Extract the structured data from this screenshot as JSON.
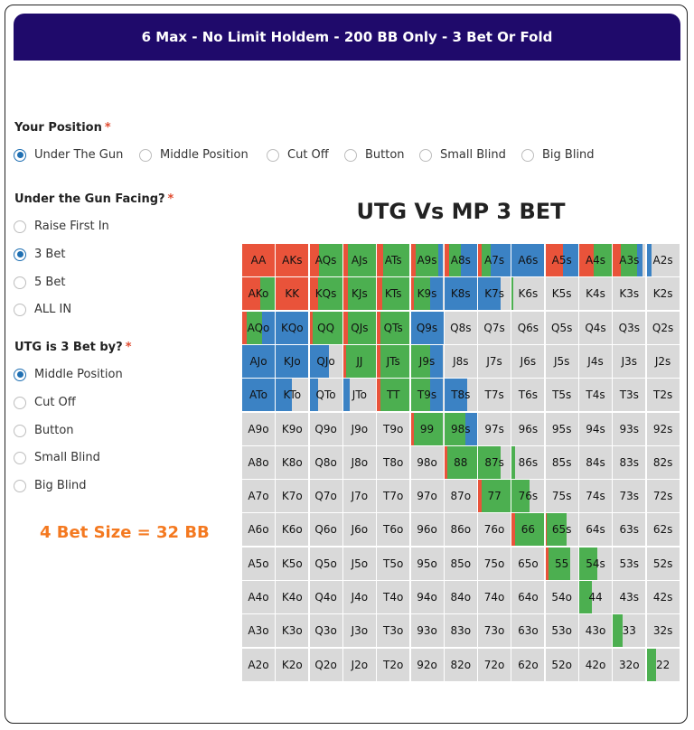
{
  "header": {
    "title": "6 Max - No Limit Holdem - 200 BB Only - 3 Bet Or Fold"
  },
  "colors": {
    "banner": "#1f0a6b",
    "raise": "#e9533a",
    "call": "#4caf50",
    "fold": "#3b82c4",
    "none": "#d9d9d9",
    "accent": "#f47920"
  },
  "position": {
    "label": "Your Position",
    "required": "*",
    "options": [
      "Under The Gun",
      "Middle Position",
      "Cut Off",
      "Button",
      "Small Blind",
      "Big Blind"
    ],
    "selected": "Under The Gun"
  },
  "facing": {
    "label": "Under the Gun Facing?",
    "required": "*",
    "options": [
      "Raise First In",
      "3 Bet",
      "5 Bet",
      "ALL IN"
    ],
    "selected": "3 Bet"
  },
  "three_bettor": {
    "label": "UTG is 3 Bet by?",
    "required": "*",
    "options": [
      "Middle Position",
      "Cut Off",
      "Button",
      "Small Blind",
      "Big Blind"
    ],
    "selected": "Middle Position"
  },
  "bet_size": "4 Bet Size = 32 BB",
  "chart_title": "UTG Vs MP 3 BET",
  "grid": {
    "rows": [
      [
        "AA",
        "AKs",
        "AQs",
        "AJs",
        "ATs",
        "A9s",
        "A8s",
        "A7s",
        "A6s",
        "A5s",
        "A4s",
        "A3s",
        "A2s"
      ],
      [
        "AKo",
        "KK",
        "KQs",
        "KJs",
        "KTs",
        "K9s",
        "K8s",
        "K7s",
        "K6s",
        "K5s",
        "K4s",
        "K3s",
        "K2s"
      ],
      [
        "AQo",
        "KQo",
        "QQ",
        "QJs",
        "QTs",
        "Q9s",
        "Q8s",
        "Q7s",
        "Q6s",
        "Q5s",
        "Q4s",
        "Q3s",
        "Q2s"
      ],
      [
        "AJo",
        "KJo",
        "QJo",
        "JJ",
        "JTs",
        "J9s",
        "J8s",
        "J7s",
        "J6s",
        "J5s",
        "J4s",
        "J3s",
        "J2s"
      ],
      [
        "ATo",
        "KTo",
        "QTo",
        "JTo",
        "TT",
        "T9s",
        "T8s",
        "T7s",
        "T6s",
        "T5s",
        "T4s",
        "T3s",
        "T2s"
      ],
      [
        "A9o",
        "K9o",
        "Q9o",
        "J9o",
        "T9o",
        "99",
        "98s",
        "97s",
        "96s",
        "95s",
        "94s",
        "93s",
        "92s"
      ],
      [
        "A8o",
        "K8o",
        "Q8o",
        "J8o",
        "T8o",
        "98o",
        "88",
        "87s",
        "86s",
        "85s",
        "84s",
        "83s",
        "82s"
      ],
      [
        "A7o",
        "K7o",
        "Q7o",
        "J7o",
        "T7o",
        "97o",
        "87o",
        "77",
        "76s",
        "75s",
        "74s",
        "73s",
        "72s"
      ],
      [
        "A6o",
        "K6o",
        "Q6o",
        "J6o",
        "T6o",
        "96o",
        "86o",
        "76o",
        "66",
        "65s",
        "64s",
        "63s",
        "62s"
      ],
      [
        "A5o",
        "K5o",
        "Q5o",
        "J5o",
        "T5o",
        "95o",
        "85o",
        "75o",
        "65o",
        "55",
        "54s",
        "53s",
        "52s"
      ],
      [
        "A4o",
        "K4o",
        "Q4o",
        "J4o",
        "T4o",
        "94o",
        "84o",
        "74o",
        "64o",
        "54o",
        "44",
        "43s",
        "42s"
      ],
      [
        "A3o",
        "K3o",
        "Q3o",
        "J3o",
        "T3o",
        "93o",
        "83o",
        "73o",
        "63o",
        "53o",
        "43o",
        "33",
        "32s"
      ],
      [
        "A2o",
        "K2o",
        "Q2o",
        "J2o",
        "T2o",
        "92o",
        "82o",
        "72o",
        "62o",
        "52o",
        "42o",
        "32o",
        "22"
      ]
    ],
    "frequencies": {
      "AA": {
        "raise": 1.0
      },
      "AKs": {
        "raise": 1.0
      },
      "AQs": {
        "raise": 0.3,
        "call": 0.7
      },
      "AJs": {
        "raise": 0.15,
        "call": 0.85
      },
      "ATs": {
        "raise": 0.2,
        "call": 0.8
      },
      "A9s": {
        "raise": 0.15,
        "call": 0.7,
        "fold": 0.15
      },
      "A8s": {
        "raise": 0.15,
        "call": 0.35,
        "fold": 0.5
      },
      "A7s": {
        "raise": 0.1,
        "call": 0.3,
        "fold": 0.6
      },
      "A6s": {
        "fold": 1.0
      },
      "A5s": {
        "raise": 0.55,
        "fold": 0.45
      },
      "A4s": {
        "raise": 0.45,
        "call": 0.55
      },
      "A3s": {
        "raise": 0.25,
        "call": 0.5,
        "fold": 0.15
      },
      "A2s": {
        "fold": 0.15
      },
      "AKo": {
        "raise": 0.55,
        "call": 0.45
      },
      "KK": {
        "raise": 1.0
      },
      "KQs": {
        "raise": 0.25,
        "call": 0.75
      },
      "KJs": {
        "raise": 0.15,
        "call": 0.85
      },
      "KTs": {
        "raise": 0.15,
        "call": 0.85
      },
      "K9s": {
        "raise": 0.1,
        "call": 0.5,
        "fold": 0.4
      },
      "K8s": {
        "fold": 1.0
      },
      "K7s": {
        "fold": 0.7
      },
      "K6s": {
        "call": 0.05
      },
      "AQo": {
        "raise": 0.15,
        "call": 0.45,
        "fold": 0.4
      },
      "KQo": {
        "fold": 1.0
      },
      "QQ": {
        "raise": 0.1,
        "call": 0.9
      },
      "QJs": {
        "raise": 0.15,
        "call": 0.85
      },
      "QTs": {
        "raise": 0.1,
        "call": 0.9
      },
      "Q9s": {
        "fold": 1.0
      },
      "AJo": {
        "fold": 1.0
      },
      "KJo": {
        "fold": 1.0
      },
      "QJo": {
        "fold": 0.6
      },
      "JJ": {
        "raise": 0.1,
        "call": 0.9
      },
      "JTs": {
        "raise": 0.1,
        "call": 0.9
      },
      "J9s": {
        "call": 0.6,
        "fold": 0.4
      },
      "ATo": {
        "fold": 1.0
      },
      "KTo": {
        "fold": 0.5
      },
      "QTo": {
        "fold": 0.25
      },
      "JTo": {
        "fold": 0.2
      },
      "TT": {
        "raise": 0.1,
        "call": 0.9
      },
      "T9s": {
        "call": 0.6,
        "fold": 0.4
      },
      "T8s": {
        "fold": 0.7
      },
      "99": {
        "raise": 0.1,
        "call": 0.9
      },
      "98s": {
        "call": 0.65,
        "fold": 0.35
      },
      "88": {
        "raise": 0.1,
        "call": 0.9
      },
      "87s": {
        "call": 0.7
      },
      "86s": {
        "call": 0.1
      },
      "77": {
        "raise": 0.1,
        "call": 0.9
      },
      "76s": {
        "call": 0.55
      },
      "66": {
        "raise": 0.1,
        "call": 0.9
      },
      "65s": {
        "raise": 0.05,
        "call": 0.6
      },
      "55": {
        "raise": 0.1,
        "call": 0.65
      },
      "54s": {
        "call": 0.55
      },
      "44": {
        "call": 0.4
      },
      "33": {
        "call": 0.3
      },
      "22": {
        "call": 0.3
      }
    }
  }
}
